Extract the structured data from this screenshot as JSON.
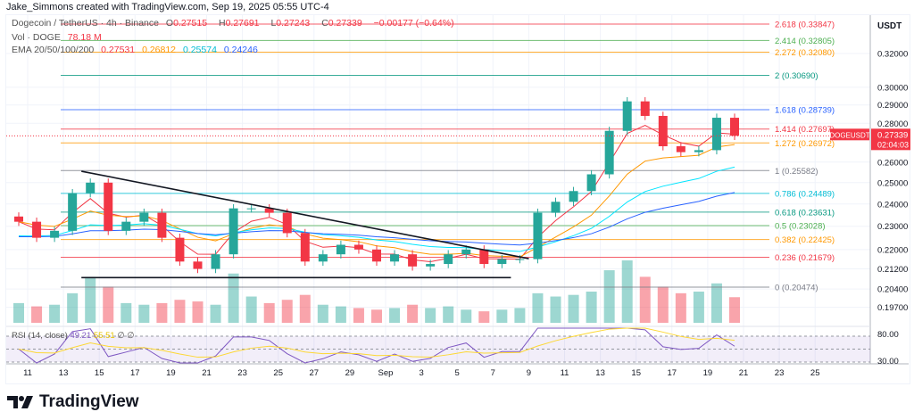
{
  "credit": "Jake_Simmons created with TradingView.com, Sep 19, 2025 05:55 UTC-4",
  "legend": {
    "symbol": "Dogecoin / TetherUS · 4h · Binance",
    "o_label": "O",
    "o": "0.27515",
    "h_label": "H",
    "h": "0.27691",
    "l_label": "L",
    "l": "0.27243",
    "c_label": "C",
    "c": "0.27339",
    "change": "−0.00177 (−0.64%)",
    "vol_label": "Vol · DOGE",
    "vol": "78.18 M",
    "ema_label": "EMA 20/50/100/200",
    "ema20": "0.27531",
    "ema50": "0.26812",
    "ema100": "0.25574",
    "ema200": "0.24246"
  },
  "rsi_legend": {
    "label": "RSI (14, close)",
    "rsi": "49.21",
    "ma": "55.51",
    "v3": "∅",
    "v4": "∅"
  },
  "axis_title": "USDT",
  "logo_text": "TradingView",
  "price_tag": {
    "symbol": "DOGEUSDT",
    "price": "0.27339",
    "countdown": "02:04:03"
  },
  "colors": {
    "up": "#26a69a",
    "down": "#f23645",
    "ema20": "#f23645",
    "ema50": "#ff9800",
    "ema100": "#00e5ff",
    "ema200": "#2962ff",
    "rsi": "#7e57c2",
    "rsi_ma": "#fdd835"
  },
  "chart_data": {
    "type": "candlestick",
    "scale": "log",
    "price_ticks": [
      "0.32000",
      "0.30000",
      "0.29000",
      "0.28000",
      "0.26000",
      "0.25000",
      "0.24000",
      "0.23000",
      "0.22000",
      "0.21200",
      "0.20400",
      "0.19700"
    ],
    "rsi_ticks": [
      "80.00",
      "30.00"
    ],
    "time_ticks": [
      "11",
      "13",
      "15",
      "17",
      "19",
      "21",
      "23",
      "25",
      "27",
      "29",
      "Sep",
      "3",
      "5",
      "7",
      "9",
      "11",
      "13",
      "15",
      "17",
      "19",
      "21",
      "23",
      "25"
    ],
    "start_date": "2025-08-10",
    "closes": [
      0.232,
      0.225,
      0.228,
      0.245,
      0.25,
      0.228,
      0.232,
      0.236,
      0.225,
      0.215,
      0.212,
      0.218,
      0.238,
      0.238,
      0.236,
      0.227,
      0.215,
      0.218,
      0.222,
      0.22,
      0.215,
      0.218,
      0.213,
      0.214,
      0.218,
      0.22,
      0.214,
      0.216,
      0.216,
      0.236,
      0.241,
      0.246,
      0.254,
      0.276,
      0.292,
      0.284,
      0.268,
      0.265,
      0.266,
      0.283,
      0.2734
    ],
    "volume_m": [
      60,
      50,
      55,
      90,
      140,
      110,
      60,
      55,
      60,
      70,
      65,
      55,
      150,
      80,
      60,
      70,
      85,
      55,
      50,
      45,
      40,
      45,
      55,
      45,
      50,
      40,
      35,
      40,
      45,
      90,
      80,
      85,
      95,
      160,
      190,
      140,
      110,
      90,
      95,
      120,
      78
    ],
    "fib_levels": [
      {
        "ratio": "2.618",
        "price": "0.33847",
        "color": "#f23645"
      },
      {
        "ratio": "2.414",
        "price": "0.32805",
        "color": "#4caf50"
      },
      {
        "ratio": "2.272",
        "price": "0.32080",
        "color": "#ff9800"
      },
      {
        "ratio": "2",
        "price": "0.30690",
        "color": "#089981"
      },
      {
        "ratio": "1.618",
        "price": "0.28739",
        "color": "#2962ff"
      },
      {
        "ratio": "1.414",
        "price": "0.27697",
        "color": "#f23645"
      },
      {
        "ratio": "1.272",
        "price": "0.26972",
        "color": "#ff9800"
      },
      {
        "ratio": "1",
        "price": "0.25582",
        "color": "#787b86"
      },
      {
        "ratio": "0.786",
        "price": "0.24489",
        "color": "#00bcd4"
      },
      {
        "ratio": "0.618",
        "price": "0.23631",
        "color": "#089981"
      },
      {
        "ratio": "0.5",
        "price": "0.23028",
        "color": "#4caf50"
      },
      {
        "ratio": "0.382",
        "price": "0.22425",
        "color": "#ff9800"
      },
      {
        "ratio": "0.236",
        "price": "0.21679",
        "color": "#f23645"
      },
      {
        "ratio": "0",
        "price": "0.20474",
        "color": "#787b86"
      }
    ],
    "trendline": {
      "from": [
        "2025-08-14",
        0.2555
      ],
      "to": [
        "2025-09-08",
        0.2162
      ]
    },
    "support": {
      "from": [
        "2025-08-14",
        0.2085
      ],
      "to": [
        "2025-09-07",
        0.2085
      ]
    }
  }
}
